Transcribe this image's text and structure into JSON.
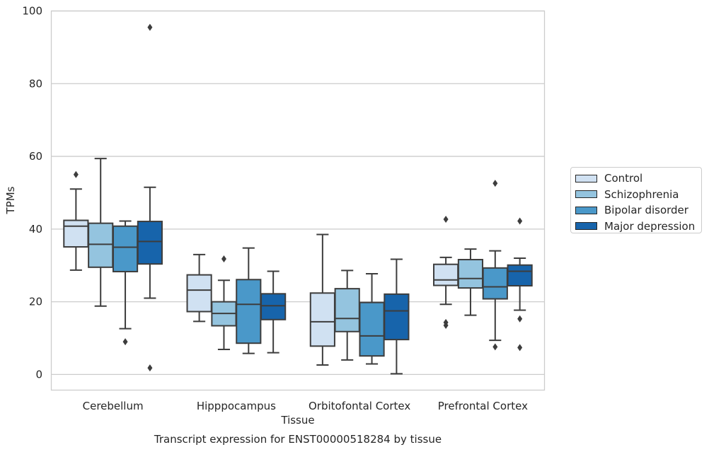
{
  "chart_data": {
    "type": "box",
    "title": "Transcript expression for ENST00000518284 by tissue",
    "xlabel": "Tissue",
    "ylabel": "TPMs",
    "ylim": [
      -4.3,
      100
    ],
    "yticks": [
      0,
      20,
      40,
      60,
      80,
      100
    ],
    "grid": "horizontal",
    "legend_placement": "right",
    "categories": [
      "Cerebellum",
      "Hipppocampus",
      "Orbitofontal Cortex",
      "Prefrontal Cortex"
    ],
    "series": [
      {
        "name": "Control",
        "color": "#d0e1f2",
        "boxes": [
          {
            "whisker_low": 28.7,
            "q1": 35.1,
            "median": 40.8,
            "q3": 42.4,
            "whisker_high": 51.0,
            "outliers": [
              55.0
            ]
          },
          {
            "whisker_low": 14.6,
            "q1": 17.3,
            "median": 23.2,
            "q3": 27.4,
            "whisker_high": 33.0,
            "outliers": []
          },
          {
            "whisker_low": 2.6,
            "q1": 7.8,
            "median": 14.5,
            "q3": 22.4,
            "whisker_high": 38.5,
            "outliers": []
          },
          {
            "whisker_low": 19.3,
            "q1": 24.5,
            "median": 26.0,
            "q3": 30.3,
            "whisker_high": 32.2,
            "outliers": [
              13.5,
              14.3,
              42.7
            ]
          }
        ]
      },
      {
        "name": "Schizophrenia",
        "color": "#94c4df",
        "boxes": [
          {
            "whisker_low": 18.8,
            "q1": 29.5,
            "median": 35.8,
            "q3": 41.6,
            "whisker_high": 59.4,
            "outliers": []
          },
          {
            "whisker_low": 6.9,
            "q1": 13.4,
            "median": 16.8,
            "q3": 20.0,
            "whisker_high": 25.9,
            "outliers": [
              31.8
            ]
          },
          {
            "whisker_low": 4.0,
            "q1": 11.8,
            "median": 15.4,
            "q3": 23.6,
            "whisker_high": 28.6,
            "outliers": []
          },
          {
            "whisker_low": 16.3,
            "q1": 23.8,
            "median": 26.4,
            "q3": 31.6,
            "whisker_high": 34.5,
            "outliers": []
          }
        ]
      },
      {
        "name": "Bipolar disorder",
        "color": "#4a98c9",
        "boxes": [
          {
            "whisker_low": 12.6,
            "q1": 28.3,
            "median": 35.0,
            "q3": 40.8,
            "whisker_high": 42.2,
            "outliers": [
              9.0
            ]
          },
          {
            "whisker_low": 5.8,
            "q1": 8.6,
            "median": 19.3,
            "q3": 26.1,
            "whisker_high": 34.8,
            "outliers": []
          },
          {
            "whisker_low": 2.9,
            "q1": 5.1,
            "median": 10.6,
            "q3": 19.8,
            "whisker_high": 27.7,
            "outliers": []
          },
          {
            "whisker_low": 9.4,
            "q1": 20.8,
            "median": 24.1,
            "q3": 29.3,
            "whisker_high": 34.0,
            "outliers": [
              7.6,
              52.6
            ]
          }
        ]
      },
      {
        "name": "Major depression",
        "color": "#1764ab",
        "boxes": [
          {
            "whisker_low": 21.0,
            "q1": 30.4,
            "median": 36.6,
            "q3": 42.1,
            "whisker_high": 51.5,
            "outliers": [
              95.5,
              1.8
            ]
          },
          {
            "whisker_low": 6.0,
            "q1": 15.1,
            "median": 18.9,
            "q3": 22.2,
            "whisker_high": 28.4,
            "outliers": []
          },
          {
            "whisker_low": 0.2,
            "q1": 9.6,
            "median": 17.5,
            "q3": 22.1,
            "whisker_high": 31.7,
            "outliers": []
          },
          {
            "whisker_low": 17.7,
            "q1": 24.4,
            "median": 28.4,
            "q3": 30.1,
            "whisker_high": 32.0,
            "outliers": [
              15.3,
              7.4,
              42.2
            ]
          }
        ]
      }
    ]
  }
}
